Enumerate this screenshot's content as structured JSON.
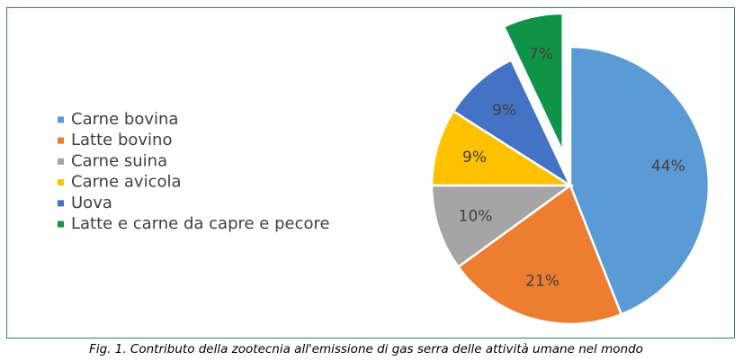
{
  "chart_data": {
    "type": "pie",
    "categories": [
      "Carne bovina",
      "Latte bovino",
      "Carne suina",
      "Carne avicola",
      "Uova",
      "Latte e carne da capre e pecore"
    ],
    "values": [
      44,
      21,
      10,
      9,
      9,
      7
    ],
    "value_labels": [
      "44%",
      "21%",
      "10%",
      "9%",
      "9%",
      "7%"
    ],
    "colors": [
      "#5b9bd5",
      "#ed7d31",
      "#a5a5a5",
      "#ffc000",
      "#4472c4",
      "#0f9447"
    ],
    "legend": "left",
    "caption": "Fig. 1. Contributo della zootecnia all'emissione di gas serra delle attività umane nel mondo"
  }
}
